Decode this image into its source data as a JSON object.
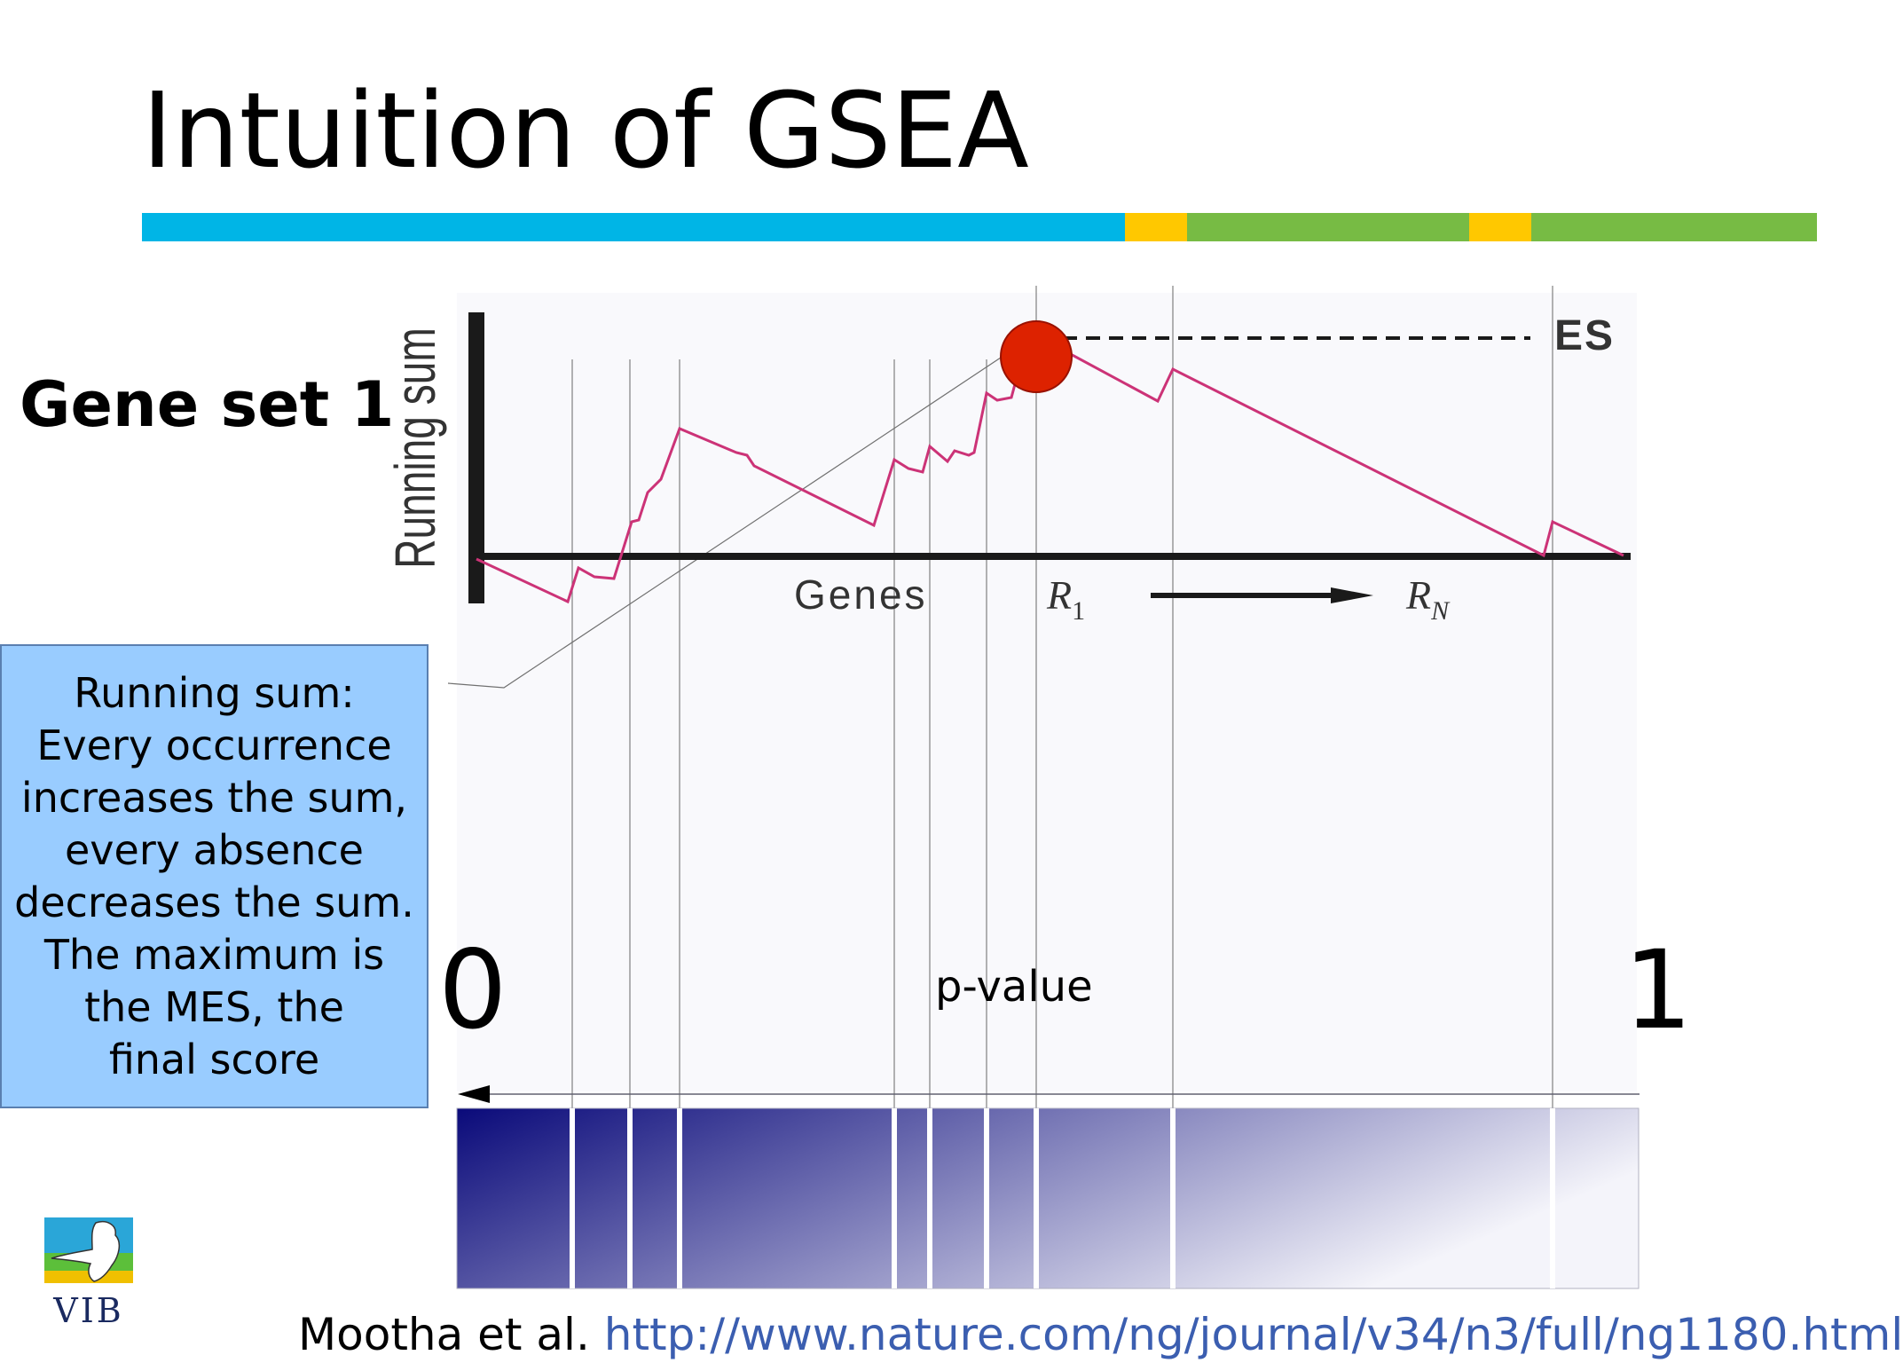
{
  "slide": {
    "title": "Intuition of GSEA",
    "title_bar_colors": [
      "#00b5e6",
      "#ffc800",
      "#77bb44",
      "#ffc800",
      "#77bb44"
    ],
    "gene_set_label": "Gene set 1"
  },
  "chart": {
    "y_label": "Running sum",
    "x_label": "Genes",
    "rank_start": "R",
    "rank_start_sub": "1",
    "rank_end": "R",
    "rank_end_sub": "N",
    "es_label": "ES",
    "curve_color": "#cc3377",
    "marker_color": "#dd2200"
  },
  "callout": {
    "text": "Running sum:\nEvery occurrence\nincreases the sum,\nevery absence\ndecreases the sum.\nThe maximum is\nthe MES, the\nfinal score",
    "background": "#99ccff"
  },
  "pvalue_scale": {
    "zero": "0",
    "one": "1",
    "label": "p-value"
  },
  "gradient": {
    "start_color": "#0a0a7a",
    "end_color": "#f4f4fa"
  },
  "citation": {
    "author": "Mootha et al.",
    "url": "http://www.nature.com/ng/journal/v34/n3/full/ng1180.html"
  },
  "logo": {
    "text": "VIB"
  }
}
